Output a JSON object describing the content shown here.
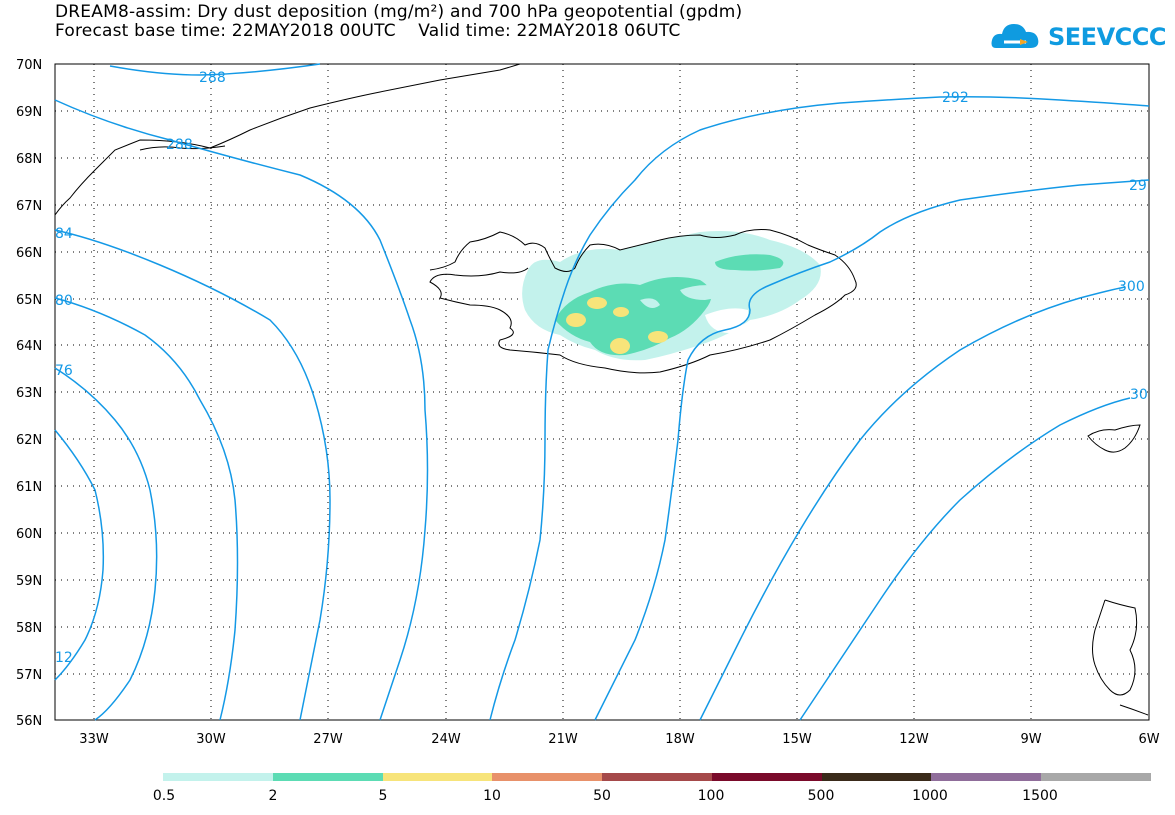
{
  "header": {
    "title_line1": "DREAM8-assim: Dry dust deposition (mg/m²) and 700 hPa geopotential (gpdm)",
    "title_line2": "Forecast base time: 22MAY2018 00UTC    Valid time: 22MAY2018 06UTC",
    "logo_text": "SEEVCCC",
    "logo_icon": "cloud-icon"
  },
  "map": {
    "lon_range": [
      -34.5,
      -6
    ],
    "lat_range": [
      56,
      70
    ],
    "lat_labels": [
      "70N",
      "69N",
      "68N",
      "67N",
      "66N",
      "65N",
      "64N",
      "63N",
      "62N",
      "61N",
      "60N",
      "59N",
      "58N",
      "57N",
      "56N"
    ],
    "lon_labels": [
      "33W",
      "30W",
      "27W",
      "24W",
      "21W",
      "18W",
      "15W",
      "12W",
      "9W",
      "6W"
    ],
    "contour_labels": [
      "288",
      "288",
      "84",
      "80",
      "76",
      "12",
      "292",
      "29",
      "300",
      "30"
    ],
    "contour_color": "#1499e6",
    "coastline_color": "#000000"
  },
  "legend": {
    "thresholds": [
      "0.5",
      "2",
      "5",
      "10",
      "50",
      "100",
      "500",
      "1000",
      "1500"
    ],
    "colors": [
      "#c3f2ec",
      "#5cdcb4",
      "#f7e47a",
      "#e8916a",
      "#a5494a",
      "#7a0a2a",
      "#3a2a1a",
      "#8f6d9a",
      "#a8a8a8"
    ]
  }
}
